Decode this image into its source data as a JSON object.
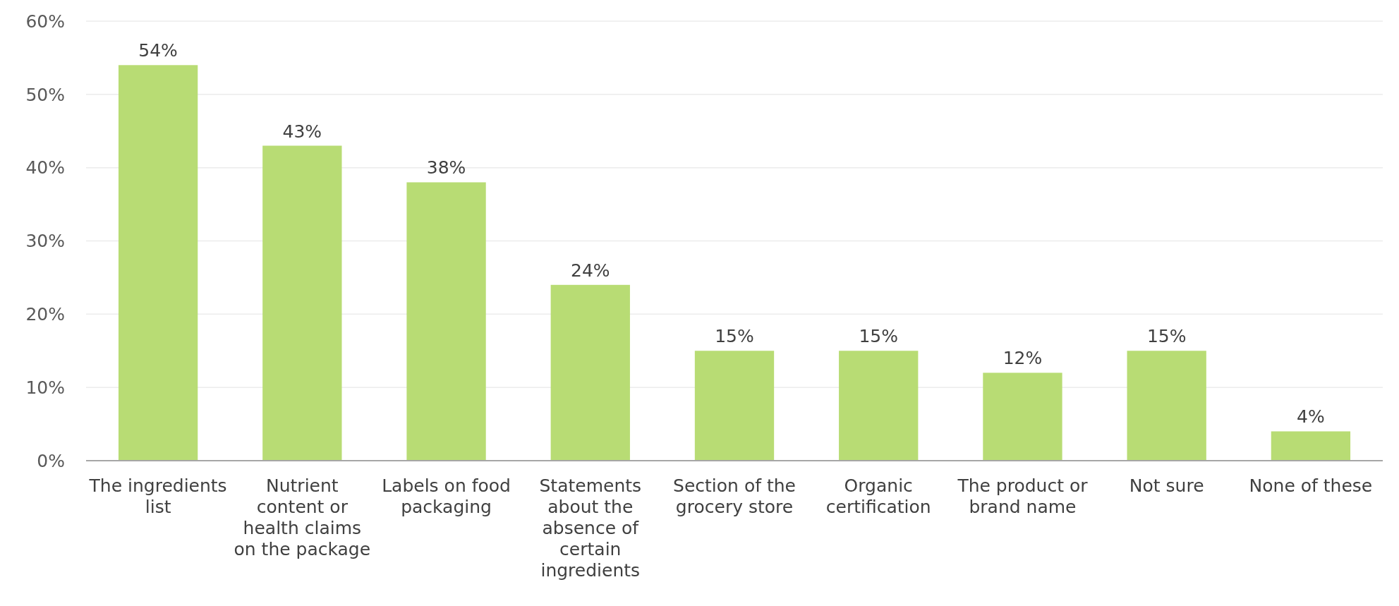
{
  "chart_data": {
    "type": "bar",
    "categories": [
      "The ingredients list",
      "Nutrient content or health claims on the package",
      "Labels on food packaging",
      "Statements about the absence of certain ingredients",
      "Section of the grocery store",
      "Organic certification",
      "The product or brand name",
      "Not sure",
      "None of these"
    ],
    "values": [
      54,
      43,
      38,
      24,
      15,
      15,
      12,
      15,
      4
    ],
    "color": "#b8dc74",
    "ylim": [
      0,
      60
    ],
    "yticks": [
      {
        "value": 0,
        "label": "0%"
      },
      {
        "value": 10,
        "label": "10%"
      },
      {
        "value": 20,
        "label": "20%"
      },
      {
        "value": 30,
        "label": "30%"
      },
      {
        "value": 40,
        "label": "40%"
      },
      {
        "value": 50,
        "label": "50%"
      },
      {
        "value": 60,
        "label": "60%"
      }
    ],
    "value_labels": [
      "54%",
      "43%",
      "38%",
      "24%",
      "15%",
      "15%",
      "12%",
      "15%",
      "4%"
    ],
    "grid": "y"
  }
}
